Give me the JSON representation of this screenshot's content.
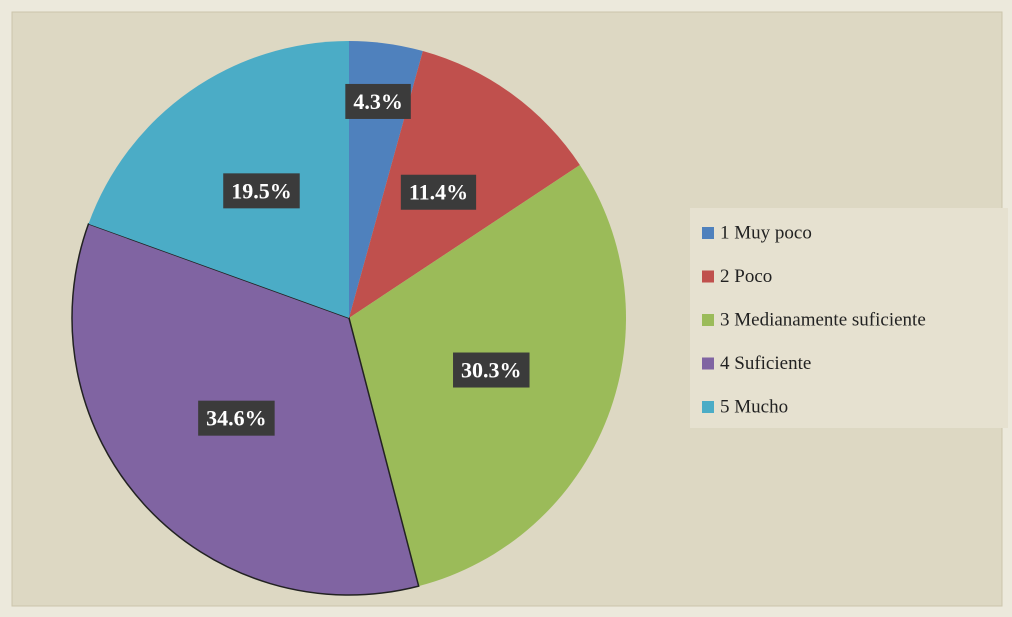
{
  "chart_data": {
    "type": "pie",
    "categories": [
      "1 Muy poco",
      "2 Poco",
      "3 Medianamente suficiente",
      "4 Suficiente",
      "5 Mucho"
    ],
    "values": [
      4.3,
      11.4,
      30.3,
      34.6,
      19.5
    ],
    "value_labels": [
      "4.3%",
      "11.4%",
      "30.3%",
      "34.6%",
      "19.5%"
    ],
    "colors": [
      "#4f81bd",
      "#c0504d",
      "#9bbb59",
      "#8064a2",
      "#4bacc6"
    ],
    "legend": "right"
  }
}
